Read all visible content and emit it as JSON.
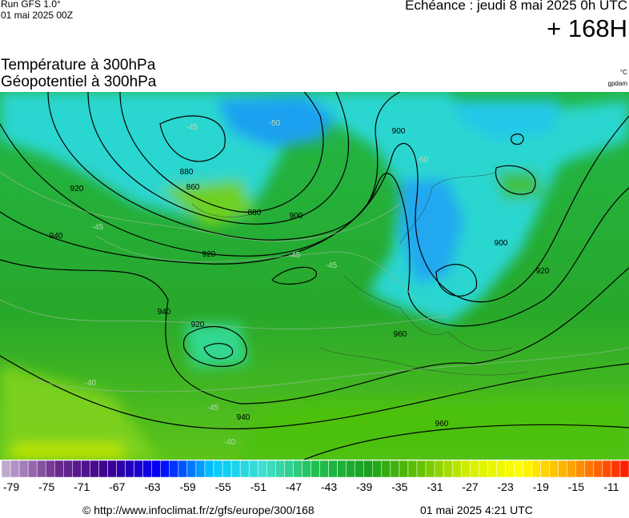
{
  "header": {
    "run": "Run GFS 1.0°",
    "date": "01 mai 2025 00Z",
    "echeance": "Echéance : jeudi 8 mai 2025 0h UTC",
    "lead": "+ 168H"
  },
  "titles": [
    "Température à 300hPa",
    "Géopotentiel à 300hPa"
  ],
  "units": [
    "°C",
    "gpdam"
  ],
  "contour_labels": [
    "860",
    "880",
    "880",
    "900",
    "900",
    "900",
    "920",
    "920",
    "920",
    "920",
    "940",
    "940",
    "940",
    "960",
    "960"
  ],
  "isotherm_labels": [
    "-45",
    "-45",
    "-45",
    "-50",
    "-50",
    "-45",
    "-40",
    "-40",
    "-45"
  ],
  "scale": {
    "labels": [
      -79,
      -75,
      -71,
      -67,
      -63,
      -59,
      -55,
      -51,
      -47,
      -43,
      -39,
      -35,
      -31,
      -27,
      -23,
      -19,
      -15,
      -11
    ],
    "colors": [
      "#c0a8d0",
      "#6a2a8a",
      "#3a0090",
      "#0000ff",
      "#00c8ff",
      "#40e0d0",
      "#20c050",
      "#18a020",
      "#60c000",
      "#d8f000",
      "#ffff00",
      "#ffa000",
      "#ff2000"
    ]
  },
  "footer": {
    "url": "© http://www.infoclimat.fr/z/gfs/europe/300/168",
    "timestamp": "01 mai 2025  4:21 UTC"
  }
}
